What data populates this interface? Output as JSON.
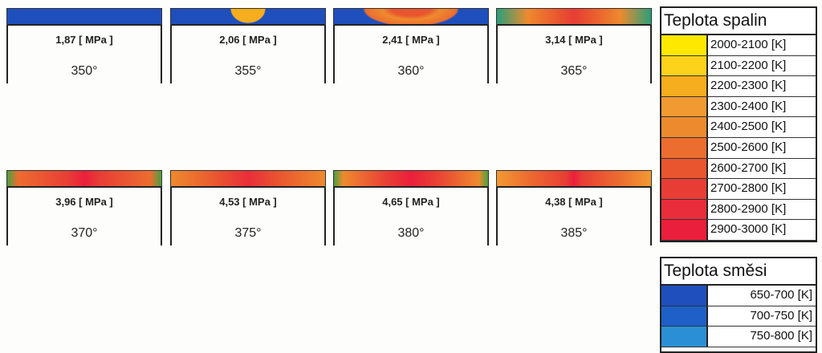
{
  "panels": [
    {
      "pressure": "1,87 [ MPa ]",
      "angle": "350°"
    },
    {
      "pressure": "2,06 [ MPa ]",
      "angle": "355°"
    },
    {
      "pressure": "2,41 [ MPa ]",
      "angle": "360°"
    },
    {
      "pressure": "3,14 [ MPa ]",
      "angle": "365°"
    },
    {
      "pressure": "3,96 [ MPa ]",
      "angle": "370°"
    },
    {
      "pressure": "4,53 [ MPa ]",
      "angle": "375°"
    },
    {
      "pressure": "4,65 [ MPa ]",
      "angle": "380°"
    },
    {
      "pressure": "4,38 [ MPa ]",
      "angle": "385°"
    }
  ],
  "legends": [
    {
      "title": "Teplota spalin",
      "entries": [
        {
          "label": "2000-2100 [K]",
          "color": "#ffe800"
        },
        {
          "label": "2100-2200 [K]",
          "color": "#fcd21a"
        },
        {
          "label": "2200-2300 [K]",
          "color": "#f6ad1e"
        },
        {
          "label": "2300-2400 [K]",
          "color": "#f29a32"
        },
        {
          "label": "2400-2500 [K]",
          "color": "#ee8a2e"
        },
        {
          "label": "2500-2600 [K]",
          "color": "#ec6d30"
        },
        {
          "label": "2600-2700 [K]",
          "color": "#e9552f"
        },
        {
          "label": "2700-2800 [K]",
          "color": "#e83d35"
        },
        {
          "label": "2800-2900 [K]",
          "color": "#e92d3a"
        },
        {
          "label": "2900-3000 [K]",
          "color": "#ea1f3c"
        }
      ]
    },
    {
      "title": "Teplota směsi",
      "entries": [
        {
          "label": "650-700 [K]",
          "color": "#1f4fbd"
        },
        {
          "label": "700-750 [K]",
          "color": "#1e60c8"
        },
        {
          "label": "750-800 [K]",
          "color": "#2b8fd6"
        }
      ]
    }
  ]
}
